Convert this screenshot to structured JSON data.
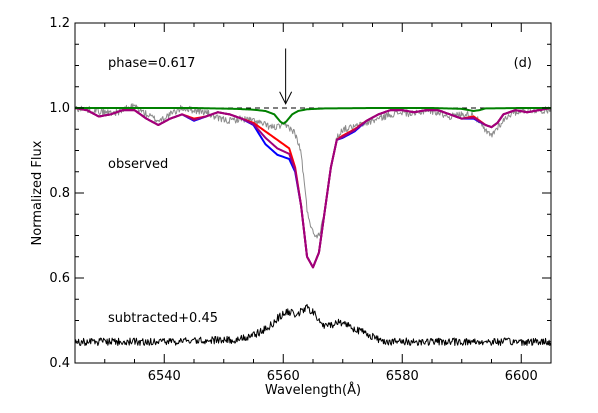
{
  "chart_data": {
    "type": "line",
    "title": "",
    "xlabel": "Wavelength(Å)",
    "ylabel": "Normalized Flux",
    "xlim": [
      6525,
      6605
    ],
    "ylim": [
      0.4,
      1.2
    ],
    "x_ticks": [
      6540,
      6560,
      6580,
      6600
    ],
    "x_tick_labels": [
      "6540",
      "6560",
      "6580",
      "6600"
    ],
    "y_ticks": [
      0.4,
      0.6,
      0.8,
      1.0,
      1.2
    ],
    "y_tick_labels": [
      "0.4",
      "0.6",
      "0.8",
      "1.0",
      "1.2"
    ],
    "x_minor_step": 5,
    "y_minor_step": 0.05,
    "grid": false,
    "annotations": {
      "panel_label": "(d)",
      "phase_label": "phase=0.617",
      "observed_label": "observed",
      "subtracted_label": "subtracted+0.45",
      "arrow_x": 6560.4,
      "arrow_y_top": 1.14,
      "arrow_y_tip": 1.01
    },
    "series": [
      {
        "key": "observed",
        "color": "#8c8c8c",
        "noise": 0.008,
        "x": [
          6525,
          6528,
          6530,
          6532,
          6534,
          6535,
          6537,
          6539,
          6541,
          6543,
          6545,
          6547,
          6549,
          6551,
          6553,
          6555,
          6557,
          6558,
          6559,
          6560,
          6561,
          6562,
          6563,
          6564,
          6565,
          6566,
          6567,
          6568,
          6569,
          6570,
          6572,
          6574,
          6576,
          6578,
          6580,
          6582,
          6584,
          6586,
          6588,
          6590,
          6592,
          6594,
          6595,
          6596,
          6598,
          6600,
          6603,
          6605
        ],
        "y": [
          1.0,
          0.995,
          0.99,
          0.99,
          1.0,
          1.005,
          0.985,
          0.97,
          0.985,
          1.0,
          0.995,
          0.99,
          0.975,
          0.97,
          0.975,
          0.97,
          0.96,
          0.955,
          0.955,
          0.96,
          0.955,
          0.94,
          0.895,
          0.76,
          0.705,
          0.7,
          0.76,
          0.86,
          0.93,
          0.95,
          0.955,
          0.965,
          0.975,
          0.985,
          0.99,
          0.985,
          0.995,
          0.99,
          0.98,
          0.985,
          0.985,
          0.945,
          0.935,
          0.955,
          0.985,
          0.995,
          0.995,
          0.995
        ]
      },
      {
        "key": "model-blue",
        "color": "#0000ff",
        "x": [
          6525,
          6527,
          6529,
          6531,
          6533,
          6535,
          6537,
          6539,
          6541,
          6543,
          6545,
          6547,
          6549,
          6551,
          6553,
          6555,
          6557,
          6559,
          6561,
          6562,
          6563,
          6564,
          6565,
          6566,
          6567,
          6568,
          6569,
          6570,
          6572,
          6574,
          6576,
          6578,
          6580,
          6582,
          6584,
          6586,
          6588,
          6590,
          6592,
          6594,
          6595,
          6596,
          6597,
          6599,
          6601,
          6603,
          6605
        ],
        "y": [
          1.0,
          0.995,
          0.98,
          0.985,
          0.995,
          0.995,
          0.975,
          0.96,
          0.975,
          0.985,
          0.97,
          0.98,
          0.99,
          0.985,
          0.975,
          0.96,
          0.915,
          0.89,
          0.88,
          0.85,
          0.77,
          0.65,
          0.625,
          0.66,
          0.76,
          0.86,
          0.925,
          0.93,
          0.945,
          0.97,
          0.985,
          0.995,
          0.995,
          0.99,
          0.995,
          0.995,
          0.985,
          0.975,
          0.975,
          0.96,
          0.955,
          0.965,
          0.985,
          0.995,
          0.99,
          0.995,
          1.0
        ]
      },
      {
        "key": "model-red",
        "color": "#ff0000",
        "x": [
          6525,
          6527,
          6529,
          6531,
          6533,
          6535,
          6537,
          6539,
          6541,
          6543,
          6545,
          6547,
          6549,
          6551,
          6553,
          6555,
          6557,
          6559,
          6561,
          6562,
          6563,
          6564,
          6565,
          6566,
          6567,
          6568,
          6569,
          6570,
          6572,
          6574,
          6576,
          6578,
          6580,
          6582,
          6584,
          6586,
          6588,
          6590,
          6592,
          6594,
          6595,
          6596,
          6597,
          6599,
          6601,
          6603,
          6605
        ],
        "y": [
          1.0,
          0.995,
          0.98,
          0.985,
          0.995,
          0.995,
          0.975,
          0.96,
          0.975,
          0.985,
          0.975,
          0.98,
          0.99,
          0.985,
          0.975,
          0.965,
          0.945,
          0.925,
          0.905,
          0.86,
          0.77,
          0.65,
          0.625,
          0.66,
          0.76,
          0.86,
          0.925,
          0.935,
          0.95,
          0.97,
          0.985,
          0.995,
          0.995,
          0.99,
          0.995,
          0.995,
          0.985,
          0.975,
          0.98,
          0.96,
          0.955,
          0.965,
          0.985,
          0.995,
          0.99,
          0.995,
          1.0
        ]
      },
      {
        "key": "model-purple",
        "color": "#a0007c",
        "x": [
          6525,
          6527,
          6529,
          6531,
          6533,
          6535,
          6537,
          6539,
          6541,
          6543,
          6545,
          6547,
          6549,
          6551,
          6553,
          6555,
          6557,
          6559,
          6561,
          6562,
          6563,
          6564,
          6565,
          6566,
          6567,
          6568,
          6569,
          6570,
          6572,
          6574,
          6576,
          6578,
          6580,
          6582,
          6584,
          6586,
          6588,
          6590,
          6592,
          6594,
          6595,
          6596,
          6597,
          6599,
          6601,
          6603,
          6605
        ],
        "y": [
          1.0,
          0.995,
          0.98,
          0.985,
          0.995,
          0.995,
          0.975,
          0.96,
          0.975,
          0.985,
          0.972,
          0.98,
          0.99,
          0.985,
          0.975,
          0.962,
          0.93,
          0.905,
          0.892,
          0.855,
          0.77,
          0.65,
          0.625,
          0.66,
          0.76,
          0.86,
          0.925,
          0.932,
          0.948,
          0.97,
          0.985,
          0.995,
          0.995,
          0.99,
          0.995,
          0.995,
          0.985,
          0.975,
          0.977,
          0.96,
          0.955,
          0.965,
          0.985,
          0.995,
          0.99,
          0.995,
          1.0
        ]
      },
      {
        "key": "reference-dashed",
        "color": "#000000",
        "dashed": true,
        "x": [
          6525,
          6605
        ],
        "y": [
          1.0,
          1.0
        ]
      },
      {
        "key": "model-green",
        "color": "#008000",
        "x": [
          6525,
          6545,
          6552,
          6555,
          6557,
          6558.5,
          6559.5,
          6560,
          6560.5,
          6561.5,
          6562.5,
          6564,
          6567,
          6575,
          6585,
          6590,
          6592,
          6593,
          6594,
          6600,
          6605
        ],
        "y": [
          1.0,
          1.0,
          0.998,
          0.996,
          0.993,
          0.985,
          0.968,
          0.963,
          0.968,
          0.985,
          0.993,
          0.997,
          0.999,
          1.0,
          1.0,
          0.998,
          0.993,
          0.995,
          0.999,
          1.0,
          1.0
        ]
      },
      {
        "key": "subtracted",
        "color": "#000000",
        "noise": 0.009,
        "x": [
          6525,
          6540,
          6552,
          6555,
          6557,
          6558,
          6559,
          6560,
          6561,
          6562,
          6563,
          6564,
          6565,
          6566,
          6567,
          6568,
          6569,
          6570,
          6571,
          6572,
          6574,
          6576,
          6578,
          6580,
          6585,
          6590,
          6600,
          6605
        ],
        "y": [
          0.45,
          0.45,
          0.455,
          0.465,
          0.48,
          0.49,
          0.505,
          0.515,
          0.52,
          0.515,
          0.52,
          0.53,
          0.52,
          0.5,
          0.485,
          0.49,
          0.495,
          0.495,
          0.49,
          0.48,
          0.47,
          0.455,
          0.45,
          0.45,
          0.45,
          0.45,
          0.45,
          0.45
        ]
      }
    ]
  }
}
